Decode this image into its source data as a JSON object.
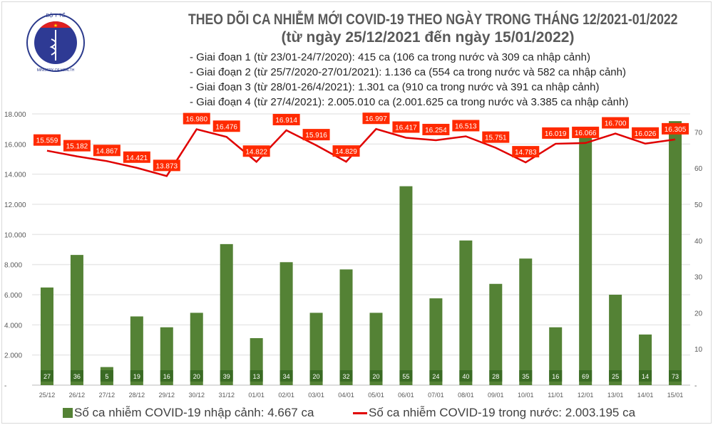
{
  "header": {
    "logo_text_top": "BỘ Y TẾ",
    "logo_text_bottom": "MINISTRY OF HEALTH",
    "title": "THEO DÕI CA NHIỄM MỚI COVID-19 THEO NGÀY TRONG THÁNG 12/2021-01/2022",
    "subtitle": "(từ ngày 25/12/2021 đến ngày 15/01/2022)",
    "phases": [
      "- Giai đoạn 1 (từ 23/01-24/7/2020): 415 ca (106 ca trong nước và 309 ca nhập cảnh)",
      "- Giai đoạn 2 (từ 25/7/2020-27/01/2021): 1.136 ca (554 ca trong nước và 582 ca nhập cảnh)",
      "- Giai đoạn 3 (từ 28/01-26/4/2021): 1.301 ca (910 ca trong nước và 391 ca nhập cảnh)",
      "- Giai đoạn 4 (từ 27/4/2021): 2.005.010 ca (2.001.625 ca trong nước và 3.385 ca nhập cảnh)"
    ]
  },
  "chart_data": {
    "type": "bar+line",
    "categories": [
      "25/12",
      "26/12",
      "27/12",
      "28/12",
      "29/12",
      "30/12",
      "31/12",
      "01/01",
      "02/01",
      "03/01",
      "04/01",
      "05/01",
      "06/01",
      "07/01",
      "08/01",
      "09/01",
      "10/01",
      "11/01",
      "12/01",
      "13/01",
      "14/01",
      "15/01"
    ],
    "series": [
      {
        "name": "Số ca nhiễm COVID-19 nhập cảnh: 4.667 ca",
        "type": "bar",
        "axis": "right",
        "color": "#548235",
        "values": [
          27,
          36,
          5,
          19,
          16,
          20,
          39,
          13,
          34,
          20,
          32,
          20,
          55,
          24,
          40,
          28,
          35,
          16,
          69,
          25,
          14,
          73
        ],
        "labels": [
          "27",
          "36",
          "5",
          "19",
          "16",
          "20",
          "39",
          "13",
          "34",
          "20",
          "32",
          "20",
          "55",
          "24",
          "40",
          "28",
          "35",
          "16",
          "69",
          "25",
          "14",
          "73"
        ]
      },
      {
        "name": "Số ca nhiễm COVID-19 trong nước: 2.003.195 ca",
        "type": "line",
        "axis": "left",
        "color": "#e00000",
        "values": [
          15559,
          15182,
          14867,
          14421,
          13873,
          16980,
          16476,
          14822,
          16914,
          15916,
          14829,
          16997,
          16417,
          16254,
          16513,
          15751,
          14783,
          16019,
          16066,
          16700,
          16026,
          16305
        ],
        "labels": [
          "15.559",
          "15.182",
          "14.867",
          "14.421",
          "13.873",
          "16.980",
          "16.476",
          "14.822",
          "16.914",
          "15.916",
          "14.829",
          "16.997",
          "16.417",
          "16.254",
          "16.513",
          "15.751",
          "14.783",
          "16.019",
          "16.066",
          "16.700",
          "16.026",
          "16.305"
        ]
      }
    ],
    "left_axis": {
      "ylim": [
        0,
        18000
      ],
      "ticks": [
        "-",
        "2.000",
        "4.000",
        "6.000",
        "8.000",
        "10.000",
        "12.000",
        "14.000",
        "16.000",
        "18.000"
      ]
    },
    "right_axis": {
      "ylim": [
        0,
        75
      ],
      "ticks": [
        "-",
        "10",
        "20",
        "30",
        "40",
        "50",
        "60",
        "70"
      ]
    },
    "grid": true,
    "legend_position": "bottom"
  },
  "colors": {
    "bar": "#548235",
    "bar_label_bg": "#3a6b24",
    "line": "#e00000",
    "line_label_bg": "#ff2a00"
  }
}
